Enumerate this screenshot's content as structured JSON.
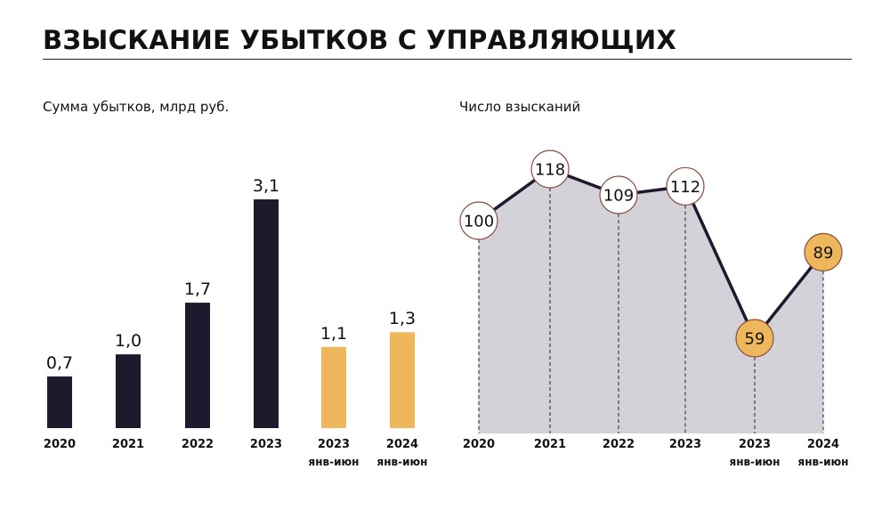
{
  "title": "ВЗЫСКАНИЕ УБЫТКОВ С УПРАВЛЯЮЩИХ",
  "colors": {
    "dark": "#1c1a2d",
    "gold": "#efb75c",
    "area": "#d3d2d8",
    "ring": "#8a4b3c"
  },
  "chart_data": [
    {
      "type": "bar",
      "title": "Сумма убытков, млрд руб.",
      "categories": [
        [
          "2020",
          ""
        ],
        [
          "2021",
          ""
        ],
        [
          "2022",
          ""
        ],
        [
          "2023",
          ""
        ],
        [
          "2023",
          "янв-июн"
        ],
        [
          "2024",
          "янв-июн"
        ]
      ],
      "values": [
        0.7,
        1.0,
        1.7,
        3.1,
        1.1,
        1.3
      ],
      "labels": [
        "0,7",
        "1,0",
        "1,7",
        "3,1",
        "1,1",
        "1,3"
      ],
      "highlight": [
        false,
        false,
        false,
        false,
        true,
        true
      ],
      "ylim": [
        0,
        3.1
      ]
    },
    {
      "type": "line",
      "title": "Число взысканий",
      "categories": [
        [
          "2020",
          ""
        ],
        [
          "2021",
          ""
        ],
        [
          "2022",
          ""
        ],
        [
          "2023",
          ""
        ],
        [
          "2023",
          "янв-июн"
        ],
        [
          "2024",
          "янв-июн"
        ]
      ],
      "values": [
        100,
        118,
        109,
        112,
        59,
        89
      ],
      "labels": [
        "100",
        "118",
        "109",
        "112",
        "59",
        "89"
      ],
      "highlight": [
        false,
        false,
        false,
        false,
        true,
        true
      ],
      "ylim": [
        0,
        125
      ]
    }
  ]
}
